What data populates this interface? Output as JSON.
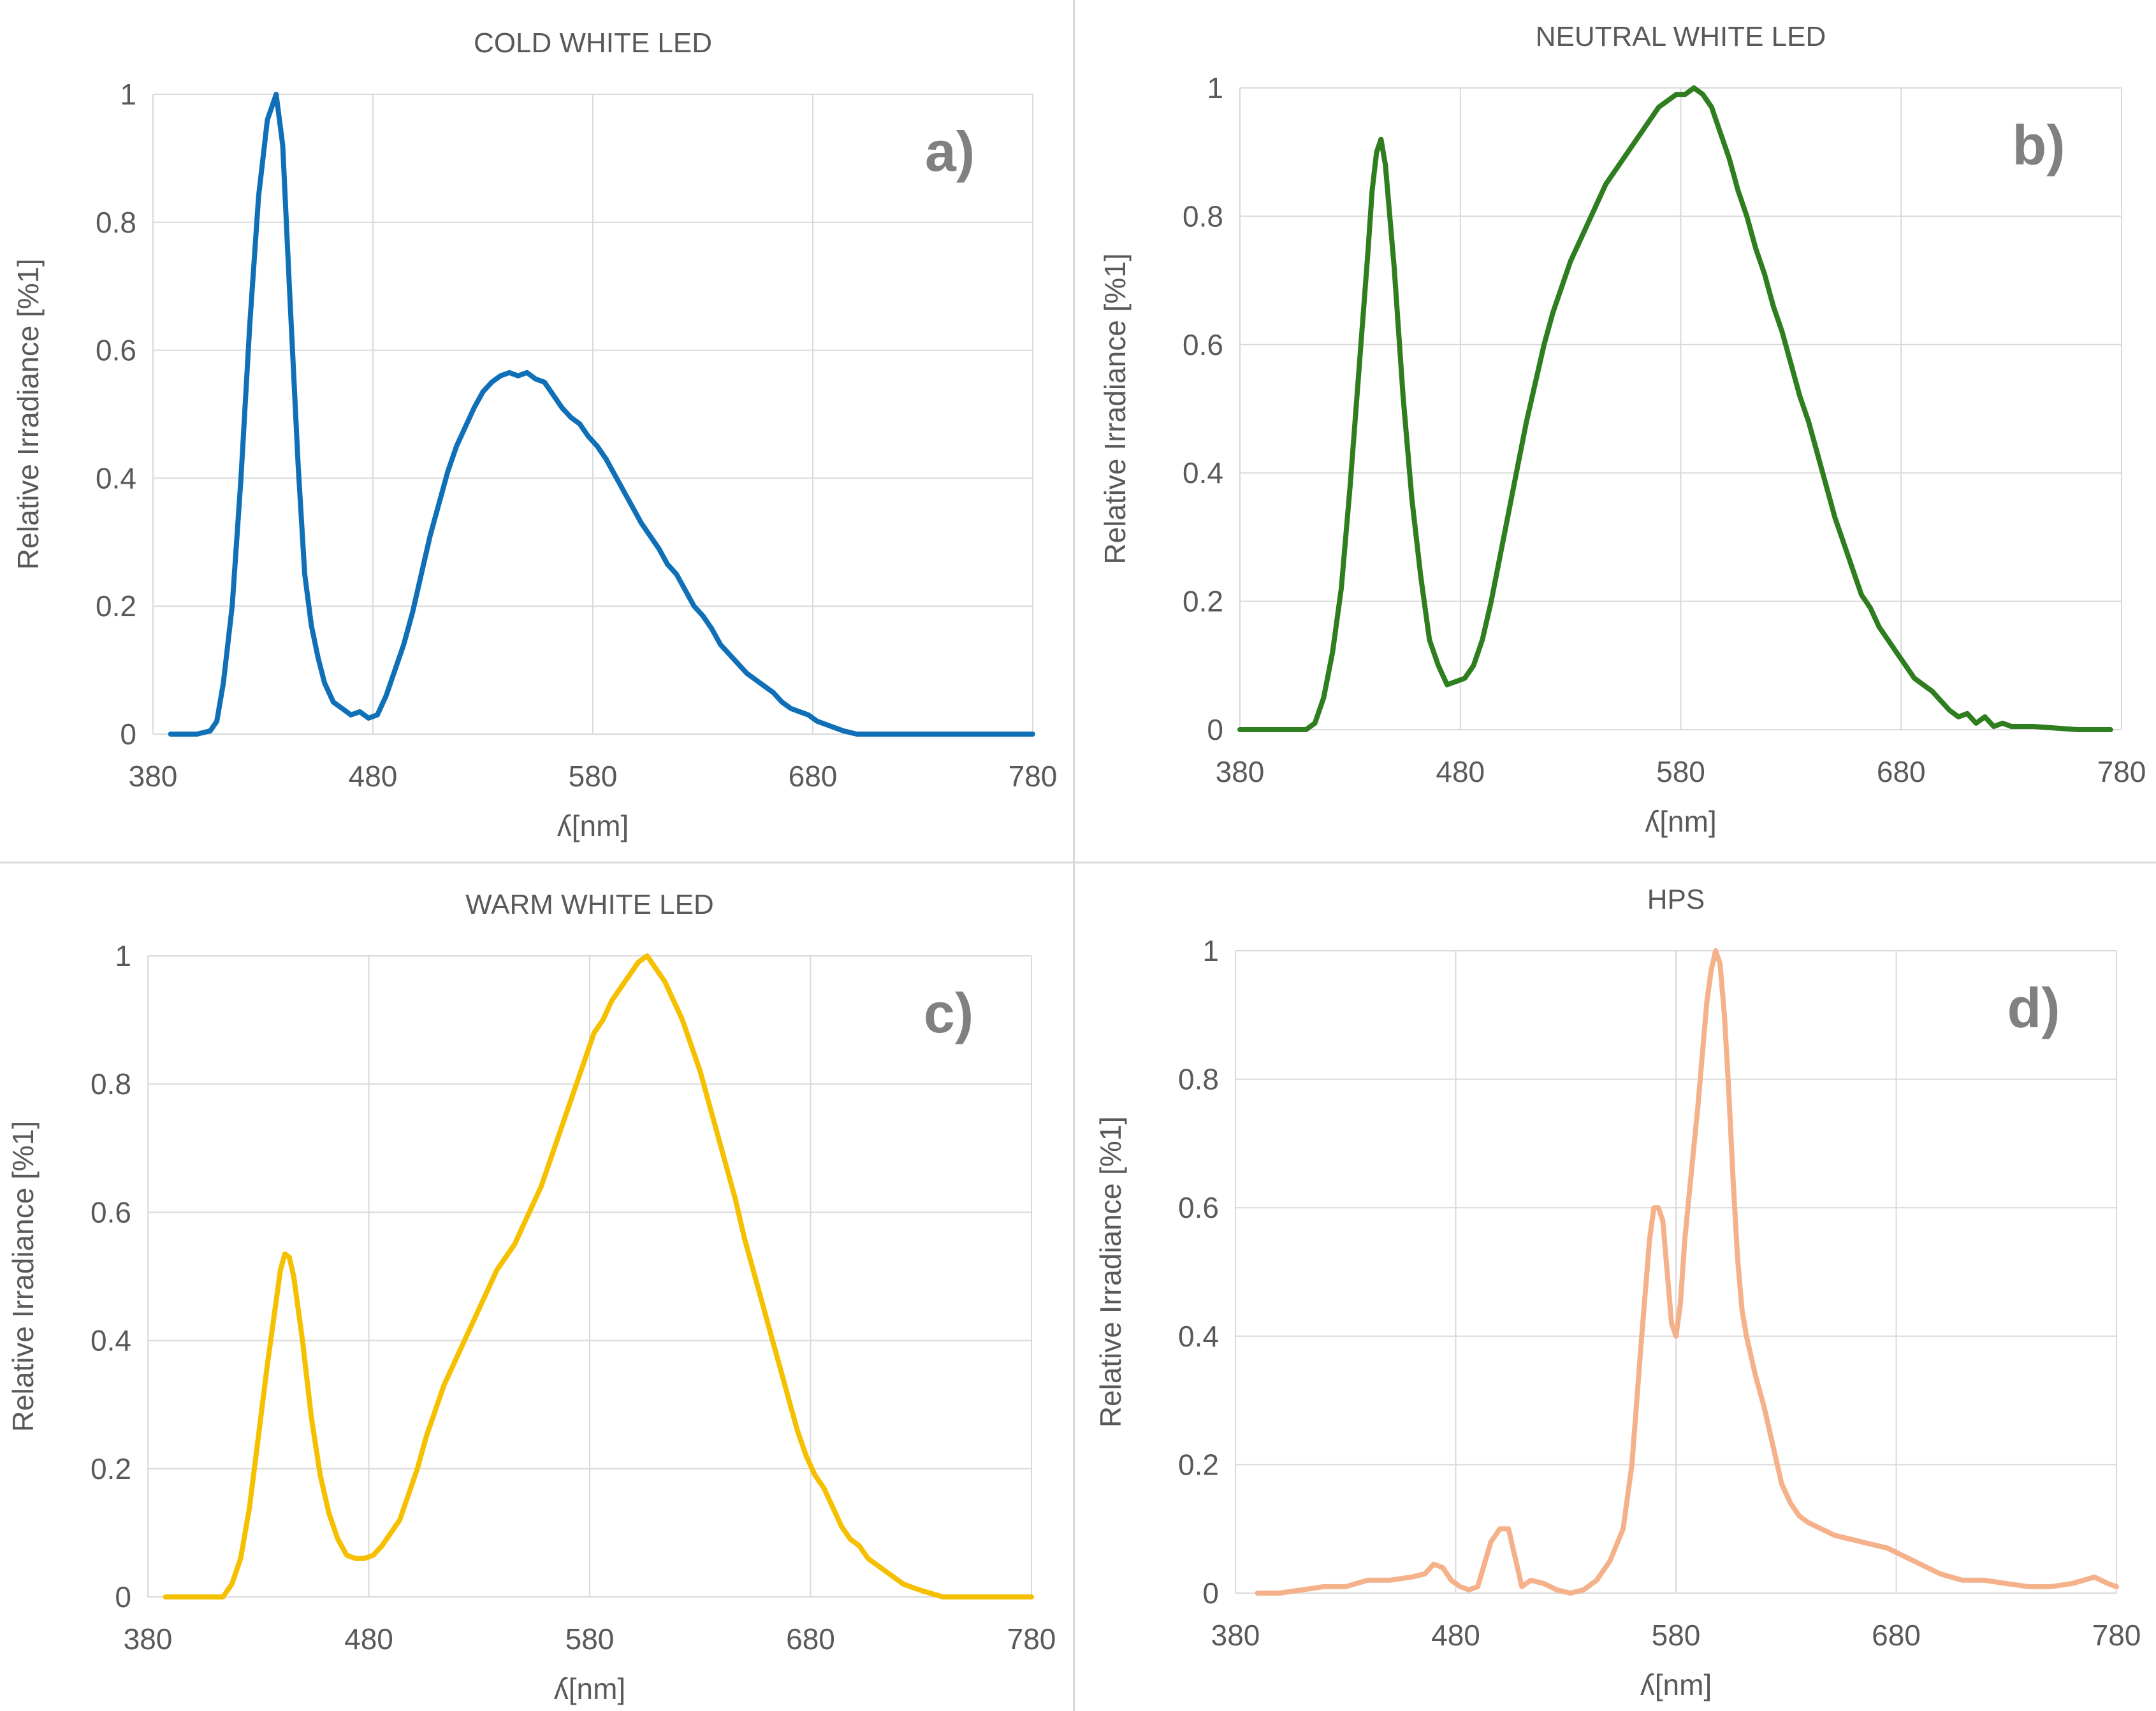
{
  "figure": {
    "panels": [
      "cold",
      "neutral",
      "warm",
      "hps"
    ]
  },
  "chart_data": [
    {
      "id": "cold",
      "type": "line",
      "title": "COLD WHITE LED",
      "panel_label": "a)",
      "xlabel": "ʎ[nm]",
      "ylabel": "Relative Irradiance [%1]",
      "xlim": [
        380,
        780
      ],
      "ylim": [
        0,
        1
      ],
      "xticks": [
        380,
        480,
        580,
        680,
        780
      ],
      "yticks": [
        0,
        0.2,
        0.4,
        0.6,
        0.8,
        1
      ],
      "ytick_labels": [
        "0",
        "0.2",
        "0.4",
        "0.6",
        "0.8",
        "1"
      ],
      "color": "#0f70b8",
      "series": [
        {
          "name": "Cold white LED",
          "x": [
            388,
            400,
            406,
            409,
            412,
            416,
            420,
            424,
            428,
            432,
            436,
            439,
            442,
            446,
            449,
            452,
            455,
            458,
            462,
            466,
            470,
            474,
            478,
            482,
            486,
            490,
            494,
            498,
            502,
            506,
            510,
            514,
            518,
            522,
            526,
            530,
            534,
            538,
            542,
            546,
            550,
            554,
            558,
            562,
            566,
            570,
            574,
            578,
            582,
            586,
            590,
            594,
            598,
            602,
            606,
            610,
            614,
            618,
            622,
            626,
            630,
            634,
            638,
            642,
            646,
            650,
            654,
            658,
            662,
            666,
            670,
            674,
            678,
            682,
            686,
            690,
            694,
            700,
            720,
            760,
            780
          ],
          "y": [
            0,
            0,
            0.005,
            0.02,
            0.08,
            0.2,
            0.4,
            0.64,
            0.84,
            0.96,
            1.0,
            0.92,
            0.7,
            0.42,
            0.25,
            0.17,
            0.12,
            0.08,
            0.05,
            0.04,
            0.03,
            0.035,
            0.025,
            0.03,
            0.06,
            0.1,
            0.14,
            0.19,
            0.25,
            0.31,
            0.36,
            0.41,
            0.45,
            0.48,
            0.51,
            0.535,
            0.55,
            0.56,
            0.565,
            0.56,
            0.565,
            0.555,
            0.55,
            0.53,
            0.51,
            0.495,
            0.485,
            0.465,
            0.45,
            0.43,
            0.405,
            0.38,
            0.355,
            0.33,
            0.31,
            0.29,
            0.265,
            0.25,
            0.225,
            0.2,
            0.185,
            0.165,
            0.14,
            0.125,
            0.11,
            0.095,
            0.085,
            0.075,
            0.065,
            0.05,
            0.04,
            0.035,
            0.03,
            0.02,
            0.015,
            0.01,
            0.005,
            0,
            0,
            0,
            0
          ]
        }
      ]
    },
    {
      "id": "neutral",
      "type": "line",
      "title": "NEUTRAL WHITE LED",
      "panel_label": "b)",
      "xlabel": "ʎ[nm]",
      "ylabel": "Relative Irradiance [%1]",
      "xlim": [
        380,
        780
      ],
      "ylim": [
        0,
        1
      ],
      "xticks": [
        380,
        480,
        580,
        680,
        780
      ],
      "yticks": [
        0,
        0.2,
        0.4,
        0.6,
        0.8,
        1
      ],
      "ytick_labels": [
        "0",
        "0.2",
        "0.4",
        "0.6",
        "0.8",
        "1"
      ],
      "color": "#2e7d1f",
      "series": [
        {
          "name": "Neutral white LED",
          "x": [
            380,
            410,
            414,
            418,
            422,
            426,
            430,
            434,
            438,
            440,
            442,
            444,
            446,
            450,
            454,
            458,
            462,
            466,
            470,
            474,
            478,
            482,
            486,
            490,
            494,
            498,
            502,
            506,
            510,
            514,
            518,
            522,
            526,
            530,
            534,
            538,
            542,
            546,
            550,
            554,
            558,
            562,
            566,
            570,
            574,
            578,
            582,
            586,
            590,
            594,
            598,
            602,
            606,
            610,
            614,
            618,
            622,
            626,
            630,
            634,
            638,
            642,
            646,
            650,
            654,
            658,
            662,
            666,
            670,
            674,
            678,
            682,
            686,
            690,
            694,
            698,
            702,
            706,
            710,
            714,
            718,
            722,
            726,
            730,
            740,
            760,
            775
          ],
          "y": [
            0,
            0,
            0.01,
            0.05,
            0.12,
            0.22,
            0.38,
            0.56,
            0.74,
            0.84,
            0.9,
            0.92,
            0.88,
            0.72,
            0.52,
            0.36,
            0.24,
            0.14,
            0.1,
            0.07,
            0.075,
            0.08,
            0.1,
            0.14,
            0.2,
            0.27,
            0.34,
            0.41,
            0.48,
            0.54,
            0.6,
            0.65,
            0.69,
            0.73,
            0.76,
            0.79,
            0.82,
            0.85,
            0.87,
            0.89,
            0.91,
            0.93,
            0.95,
            0.97,
            0.98,
            0.99,
            0.99,
            1.0,
            0.99,
            0.97,
            0.93,
            0.89,
            0.84,
            0.8,
            0.75,
            0.71,
            0.66,
            0.62,
            0.57,
            0.52,
            0.48,
            0.43,
            0.38,
            0.33,
            0.29,
            0.25,
            0.21,
            0.19,
            0.16,
            0.14,
            0.12,
            0.1,
            0.08,
            0.07,
            0.06,
            0.045,
            0.03,
            0.02,
            0.025,
            0.01,
            0.02,
            0.005,
            0.01,
            0.005,
            0.005,
            0,
            0
          ]
        }
      ]
    },
    {
      "id": "warm",
      "type": "line",
      "title": "WARM WHITE LED",
      "panel_label": "c)",
      "xlabel": "ʎ[nm]",
      "ylabel": "Relative Irradiance [%1]",
      "xlim": [
        380,
        780
      ],
      "ylim": [
        0,
        1
      ],
      "xticks": [
        380,
        480,
        580,
        680,
        780
      ],
      "yticks": [
        0,
        0.2,
        0.4,
        0.6,
        0.8,
        1
      ],
      "ytick_labels": [
        "0",
        "0.2",
        "0.4",
        "0.6",
        "0.8",
        "1"
      ],
      "color": "#f5c000",
      "series": [
        {
          "name": "Warm white LED",
          "x": [
            388,
            414,
            418,
            422,
            426,
            430,
            434,
            438,
            440,
            442,
            444,
            446,
            450,
            454,
            458,
            462,
            466,
            470,
            474,
            478,
            482,
            486,
            490,
            494,
            498,
            502,
            506,
            510,
            514,
            518,
            522,
            526,
            530,
            534,
            538,
            542,
            546,
            550,
            554,
            558,
            562,
            566,
            570,
            574,
            578,
            582,
            586,
            590,
            594,
            598,
            602,
            606,
            610,
            614,
            618,
            622,
            626,
            630,
            634,
            638,
            642,
            646,
            650,
            654,
            658,
            662,
            666,
            670,
            674,
            678,
            682,
            686,
            690,
            694,
            698,
            702,
            706,
            710,
            714,
            718,
            722,
            726,
            730,
            740,
            760,
            780
          ],
          "y": [
            0,
            0,
            0.02,
            0.06,
            0.14,
            0.25,
            0.36,
            0.46,
            0.51,
            0.535,
            0.53,
            0.5,
            0.4,
            0.28,
            0.19,
            0.13,
            0.09,
            0.065,
            0.06,
            0.06,
            0.065,
            0.08,
            0.1,
            0.12,
            0.16,
            0.2,
            0.25,
            0.29,
            0.33,
            0.36,
            0.39,
            0.42,
            0.45,
            0.48,
            0.51,
            0.53,
            0.55,
            0.58,
            0.61,
            0.64,
            0.68,
            0.72,
            0.76,
            0.8,
            0.84,
            0.88,
            0.9,
            0.93,
            0.95,
            0.97,
            0.99,
            1.0,
            0.98,
            0.96,
            0.93,
            0.9,
            0.86,
            0.82,
            0.77,
            0.72,
            0.67,
            0.62,
            0.56,
            0.51,
            0.46,
            0.41,
            0.36,
            0.31,
            0.26,
            0.22,
            0.19,
            0.17,
            0.14,
            0.11,
            0.09,
            0.08,
            0.06,
            0.05,
            0.04,
            0.03,
            0.02,
            0.015,
            0.01,
            0,
            0,
            0
          ]
        }
      ]
    },
    {
      "id": "hps",
      "type": "line",
      "title": "HPS",
      "panel_label": "d)",
      "xlabel": "ʎ[nm]",
      "ylabel": "Relative Irradiance [%1]",
      "xlim": [
        380,
        780
      ],
      "ylim": [
        0,
        1
      ],
      "xticks": [
        380,
        480,
        580,
        680,
        780
      ],
      "yticks": [
        0,
        0.2,
        0.4,
        0.6,
        0.8,
        1
      ],
      "ytick_labels": [
        "0",
        "0.2",
        "0.4",
        "0.6",
        "0.8",
        "1"
      ],
      "color": "#f5b28a",
      "series": [
        {
          "name": "HPS",
          "x": [
            390,
            400,
            410,
            420,
            430,
            440,
            450,
            460,
            466,
            470,
            474,
            478,
            482,
            486,
            490,
            496,
            500,
            504,
            506,
            510,
            514,
            520,
            526,
            532,
            538,
            544,
            550,
            556,
            560,
            564,
            568,
            570,
            572,
            574,
            576,
            578,
            580,
            582,
            584,
            586,
            590,
            594,
            596,
            598,
            600,
            602,
            604,
            606,
            608,
            610,
            612,
            614,
            616,
            620,
            624,
            628,
            632,
            636,
            640,
            646,
            652,
            658,
            664,
            670,
            676,
            682,
            688,
            694,
            700,
            710,
            720,
            730,
            740,
            750,
            760,
            770,
            776,
            780
          ],
          "y": [
            0,
            0,
            0.005,
            0.01,
            0.01,
            0.02,
            0.02,
            0.025,
            0.03,
            0.045,
            0.04,
            0.02,
            0.01,
            0.005,
            0.01,
            0.08,
            0.1,
            0.1,
            0.07,
            0.01,
            0.02,
            0.015,
            0.005,
            0,
            0.005,
            0.02,
            0.05,
            0.1,
            0.2,
            0.38,
            0.55,
            0.6,
            0.6,
            0.58,
            0.5,
            0.42,
            0.4,
            0.45,
            0.55,
            0.62,
            0.76,
            0.92,
            0.97,
            1.0,
            0.98,
            0.9,
            0.78,
            0.64,
            0.52,
            0.44,
            0.4,
            0.37,
            0.34,
            0.29,
            0.23,
            0.17,
            0.14,
            0.12,
            0.11,
            0.1,
            0.09,
            0.085,
            0.08,
            0.075,
            0.07,
            0.06,
            0.05,
            0.04,
            0.03,
            0.02,
            0.02,
            0.015,
            0.01,
            0.01,
            0.015,
            0.025,
            0.015,
            0.01
          ]
        }
      ]
    }
  ]
}
